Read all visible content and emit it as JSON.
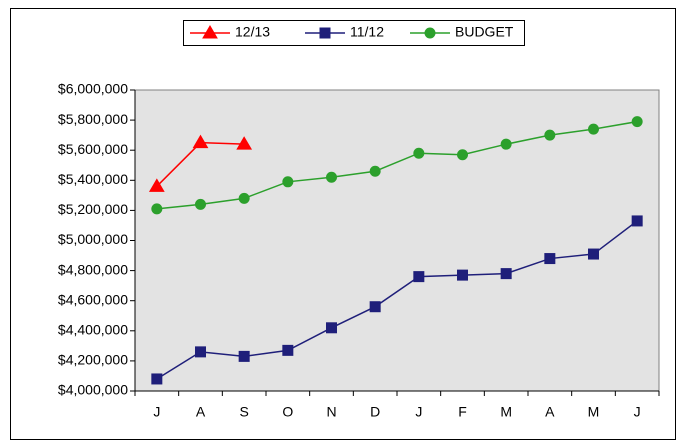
{
  "chart_data": {
    "type": "line",
    "categories": [
      "J",
      "A",
      "S",
      "O",
      "N",
      "D",
      "J",
      "F",
      "M",
      "A",
      "M",
      "J"
    ],
    "series": [
      {
        "name": "12/13",
        "color": "#ff0000",
        "marker": "triangle",
        "values": [
          5360000,
          5650000,
          5640000,
          null,
          null,
          null,
          null,
          null,
          null,
          null,
          null,
          null
        ]
      },
      {
        "name": "11/12",
        "color": "#1f1f7a",
        "marker": "square",
        "values": [
          4080000,
          4260000,
          4230000,
          4270000,
          4420000,
          4560000,
          4760000,
          4770000,
          4780000,
          4880000,
          4910000,
          5130000
        ]
      },
      {
        "name": "BUDGET",
        "color": "#2ca02c",
        "marker": "circle",
        "values": [
          5210000,
          5240000,
          5280000,
          5390000,
          5420000,
          5460000,
          5580000,
          5570000,
          5640000,
          5700000,
          5740000,
          5790000
        ]
      }
    ],
    "ylim": [
      4000000,
      6000000
    ],
    "yticks": [
      {
        "value": 4000000,
        "label": "$4,000,000"
      },
      {
        "value": 4200000,
        "label": "$4,200,000"
      },
      {
        "value": 4400000,
        "label": "$4,400,000"
      },
      {
        "value": 4600000,
        "label": "$4,600,000"
      },
      {
        "value": 4800000,
        "label": "$4,800,000"
      },
      {
        "value": 5000000,
        "label": "$5,000,000"
      },
      {
        "value": 5200000,
        "label": "$5,200,000"
      },
      {
        "value": 5400000,
        "label": "$5,400,000"
      },
      {
        "value": 5600000,
        "label": "$5,600,000"
      },
      {
        "value": 5800000,
        "label": "$5,800,000"
      },
      {
        "value": 6000000,
        "label": "$6,000,000"
      }
    ],
    "grid": false,
    "legend": "top"
  }
}
